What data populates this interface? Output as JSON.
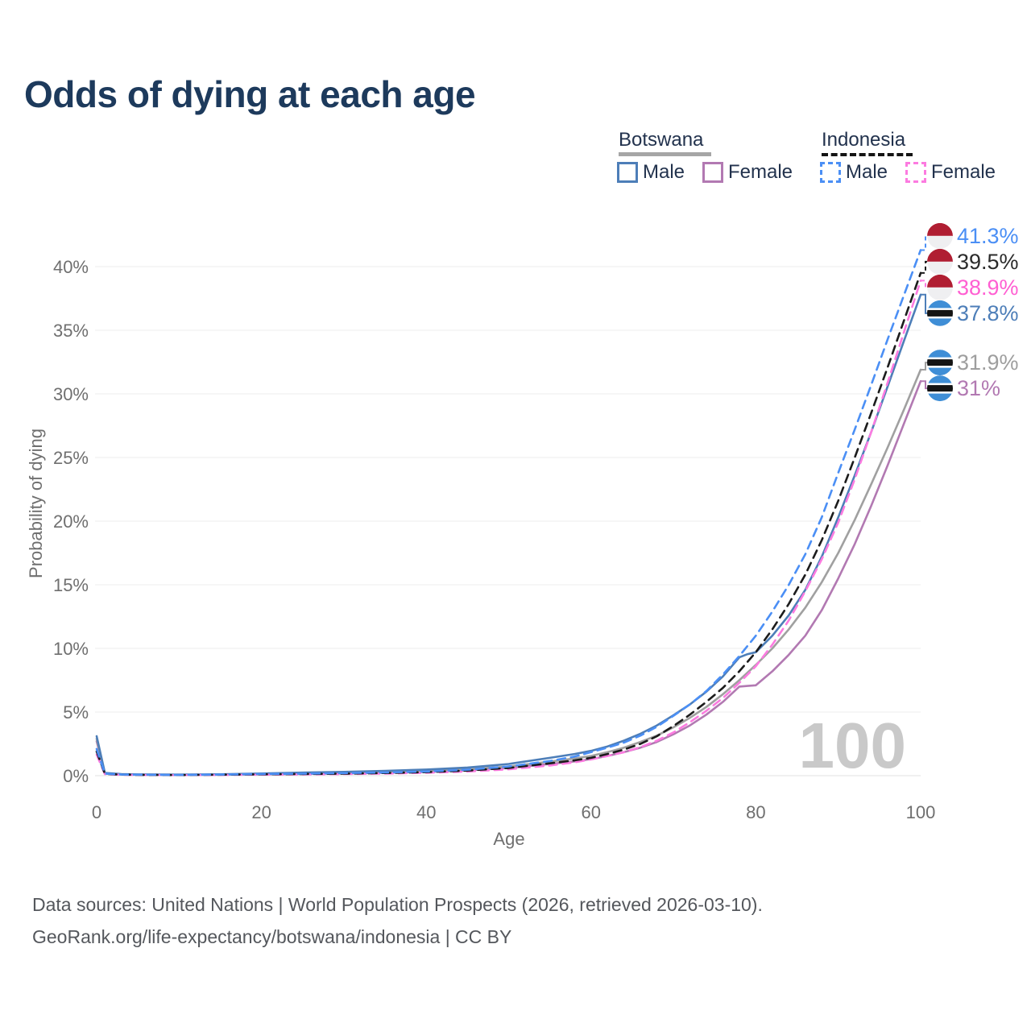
{
  "title": "Odds of dying at each age",
  "watermark": "100",
  "legend": {
    "groups": [
      {
        "name": "Botswana",
        "style": "solid-gray-underline",
        "items": [
          {
            "label": "Male"
          },
          {
            "label": "Female"
          }
        ]
      },
      {
        "name": "Indonesia",
        "style": "dashed-black-underline",
        "items": [
          {
            "label": "Male"
          },
          {
            "label": "Female"
          }
        ]
      }
    ]
  },
  "footer": {
    "line1": "Data sources: United Nations | World Population Prospects (2026, retrieved 2026-03-10).",
    "line2": "GeoRank.org/life-expectancy/botswana/indonesia | CC BY"
  },
  "flag_colors": {
    "indonesia_red": "#b01e32",
    "indonesia_white": "#efeff1",
    "botswana_blue": "#3f8ed6",
    "botswana_black": "#141414",
    "botswana_white": "#ffffff"
  },
  "chart_data": {
    "type": "line",
    "title": "Odds of dying at each age",
    "xlabel": "Age",
    "ylabel": "Probability of dying",
    "x_ticks": [
      0,
      20,
      40,
      60,
      80,
      100
    ],
    "y_ticks_pct": [
      0,
      5,
      10,
      15,
      20,
      25,
      30,
      35,
      40
    ],
    "xlim": [
      0,
      100
    ],
    "ylim_pct": [
      0,
      42
    ],
    "grid": "horizontal-only",
    "legend_position": "top-right",
    "series": [
      {
        "id": "botswana-female",
        "name": "Botswana female",
        "color": "#b279b2",
        "dashed": false,
        "end_label": "31%",
        "label_color": "#b279b2",
        "flag": "botswana",
        "points": [
          [
            0,
            2.7
          ],
          [
            1,
            0.17
          ],
          [
            3,
            0.09
          ],
          [
            5,
            0.075
          ],
          [
            10,
            0.055
          ],
          [
            15,
            0.075
          ],
          [
            20,
            0.105
          ],
          [
            25,
            0.14
          ],
          [
            30,
            0.18
          ],
          [
            35,
            0.23
          ],
          [
            40,
            0.3
          ],
          [
            45,
            0.41
          ],
          [
            50,
            0.6
          ],
          [
            55,
            0.92
          ],
          [
            58,
            1.12
          ],
          [
            60,
            1.3
          ],
          [
            62,
            1.55
          ],
          [
            64,
            1.85
          ],
          [
            66,
            2.2
          ],
          [
            68,
            2.65
          ],
          [
            70,
            3.25
          ],
          [
            72,
            3.95
          ],
          [
            74,
            4.8
          ],
          [
            76,
            5.8
          ],
          [
            78,
            7.0
          ],
          [
            79,
            7.05
          ],
          [
            80,
            7.1
          ],
          [
            82,
            8.2
          ],
          [
            84,
            9.5
          ],
          [
            86,
            11.0
          ],
          [
            88,
            13.0
          ],
          [
            90,
            15.5
          ],
          [
            92,
            18.2
          ],
          [
            94,
            21.2
          ],
          [
            96,
            24.4
          ],
          [
            98,
            27.7
          ],
          [
            100,
            31.0
          ]
        ]
      },
      {
        "id": "botswana-total",
        "name": "Botswana",
        "color": "#a0a0a0",
        "dashed": false,
        "end_label": "31.9%",
        "label_color": "#9e9e9e",
        "flag": "botswana",
        "points": [
          [
            0,
            2.9
          ],
          [
            1,
            0.19
          ],
          [
            3,
            0.1
          ],
          [
            5,
            0.085
          ],
          [
            10,
            0.065
          ],
          [
            15,
            0.09
          ],
          [
            20,
            0.13
          ],
          [
            25,
            0.18
          ],
          [
            30,
            0.23
          ],
          [
            35,
            0.29
          ],
          [
            40,
            0.37
          ],
          [
            45,
            0.5
          ],
          [
            50,
            0.72
          ],
          [
            55,
            1.1
          ],
          [
            58,
            1.35
          ],
          [
            60,
            1.55
          ],
          [
            62,
            1.85
          ],
          [
            64,
            2.2
          ],
          [
            66,
            2.65
          ],
          [
            68,
            3.15
          ],
          [
            70,
            3.8
          ],
          [
            72,
            4.55
          ],
          [
            74,
            5.4
          ],
          [
            76,
            6.4
          ],
          [
            78,
            7.5
          ],
          [
            80,
            8.7
          ],
          [
            82,
            10.0
          ],
          [
            84,
            11.5
          ],
          [
            86,
            13.2
          ],
          [
            88,
            15.2
          ],
          [
            90,
            17.5
          ],
          [
            92,
            20.1
          ],
          [
            94,
            22.9
          ],
          [
            96,
            25.8
          ],
          [
            98,
            28.8
          ],
          [
            100,
            31.9
          ]
        ]
      },
      {
        "id": "botswana-male",
        "name": "Botswana male",
        "color": "#4d7eb8",
        "dashed": false,
        "end_label": "37.8%",
        "label_color": "#4d7eb8",
        "flag": "botswana",
        "points": [
          [
            0,
            3.1
          ],
          [
            1,
            0.22
          ],
          [
            3,
            0.12
          ],
          [
            5,
            0.1
          ],
          [
            10,
            0.08
          ],
          [
            15,
            0.11
          ],
          [
            20,
            0.17
          ],
          [
            25,
            0.24
          ],
          [
            30,
            0.3
          ],
          [
            35,
            0.38
          ],
          [
            40,
            0.48
          ],
          [
            45,
            0.64
          ],
          [
            50,
            0.92
          ],
          [
            55,
            1.4
          ],
          [
            58,
            1.7
          ],
          [
            60,
            1.95
          ],
          [
            62,
            2.3
          ],
          [
            64,
            2.75
          ],
          [
            66,
            3.3
          ],
          [
            68,
            3.95
          ],
          [
            70,
            4.75
          ],
          [
            72,
            5.6
          ],
          [
            74,
            6.6
          ],
          [
            76,
            7.8
          ],
          [
            78,
            9.3
          ],
          [
            79,
            9.55
          ],
          [
            80,
            9.7
          ],
          [
            82,
            11.0
          ],
          [
            84,
            12.6
          ],
          [
            86,
            14.6
          ],
          [
            88,
            17.2
          ],
          [
            90,
            20.3
          ],
          [
            92,
            23.6
          ],
          [
            94,
            27.0
          ],
          [
            96,
            30.6
          ],
          [
            98,
            34.2
          ],
          [
            100,
            37.8
          ]
        ]
      },
      {
        "id": "indonesia-female",
        "name": "Indonesia female",
        "color": "#fc7be0",
        "dashed": true,
        "end_label": "38.9%",
        "label_color": "#ff5fd2",
        "flag": "indonesia",
        "points": [
          [
            0,
            1.65
          ],
          [
            1,
            0.12
          ],
          [
            3,
            0.07
          ],
          [
            5,
            0.055
          ],
          [
            10,
            0.045
          ],
          [
            15,
            0.06
          ],
          [
            20,
            0.08
          ],
          [
            25,
            0.1
          ],
          [
            30,
            0.125
          ],
          [
            35,
            0.165
          ],
          [
            40,
            0.225
          ],
          [
            45,
            0.325
          ],
          [
            50,
            0.5
          ],
          [
            55,
            0.8
          ],
          [
            58,
            1.05
          ],
          [
            60,
            1.28
          ],
          [
            62,
            1.55
          ],
          [
            64,
            1.85
          ],
          [
            66,
            2.25
          ],
          [
            68,
            2.75
          ],
          [
            70,
            3.4
          ],
          [
            72,
            4.2
          ],
          [
            74,
            5.1
          ],
          [
            76,
            6.1
          ],
          [
            78,
            7.3
          ],
          [
            80,
            8.6
          ],
          [
            82,
            10.3
          ],
          [
            84,
            12.2
          ],
          [
            86,
            14.5
          ],
          [
            88,
            17.0
          ],
          [
            90,
            19.9
          ],
          [
            92,
            23.3
          ],
          [
            94,
            27.0
          ],
          [
            96,
            30.9
          ],
          [
            98,
            34.9
          ],
          [
            100,
            38.9
          ]
        ]
      },
      {
        "id": "indonesia-total",
        "name": "Indonesia",
        "color": "#1c1c1c",
        "dashed": true,
        "end_label": "39.5%",
        "label_color": "#2b2b2b",
        "flag": "indonesia",
        "points": [
          [
            0,
            1.9
          ],
          [
            1,
            0.14
          ],
          [
            3,
            0.08
          ],
          [
            5,
            0.065
          ],
          [
            10,
            0.05
          ],
          [
            15,
            0.075
          ],
          [
            20,
            0.105
          ],
          [
            25,
            0.13
          ],
          [
            30,
            0.16
          ],
          [
            35,
            0.21
          ],
          [
            40,
            0.28
          ],
          [
            45,
            0.4
          ],
          [
            50,
            0.61
          ],
          [
            55,
            0.97
          ],
          [
            58,
            1.2
          ],
          [
            60,
            1.4
          ],
          [
            62,
            1.7
          ],
          [
            64,
            2.05
          ],
          [
            66,
            2.5
          ],
          [
            68,
            3.1
          ],
          [
            70,
            3.9
          ],
          [
            72,
            4.8
          ],
          [
            74,
            5.8
          ],
          [
            76,
            6.9
          ],
          [
            78,
            8.2
          ],
          [
            80,
            9.7
          ],
          [
            82,
            11.5
          ],
          [
            84,
            13.5
          ],
          [
            86,
            15.8
          ],
          [
            88,
            18.5
          ],
          [
            90,
            21.6
          ],
          [
            92,
            25.0
          ],
          [
            94,
            28.5
          ],
          [
            96,
            32.1
          ],
          [
            98,
            35.8
          ],
          [
            100,
            39.5
          ]
        ]
      },
      {
        "id": "indonesia-male",
        "name": "Indonesia male",
        "color": "#4b8ff5",
        "dashed": true,
        "end_label": "41.3%",
        "label_color": "#4b8ff5",
        "flag": "indonesia",
        "points": [
          [
            0,
            2.1
          ],
          [
            1,
            0.16
          ],
          [
            3,
            0.09
          ],
          [
            5,
            0.075
          ],
          [
            10,
            0.06
          ],
          [
            15,
            0.09
          ],
          [
            20,
            0.13
          ],
          [
            25,
            0.16
          ],
          [
            30,
            0.2
          ],
          [
            35,
            0.25
          ],
          [
            40,
            0.33
          ],
          [
            45,
            0.47
          ],
          [
            50,
            0.72
          ],
          [
            55,
            1.15
          ],
          [
            58,
            1.5
          ],
          [
            60,
            1.85
          ],
          [
            62,
            2.2
          ],
          [
            64,
            2.6
          ],
          [
            66,
            3.15
          ],
          [
            68,
            3.85
          ],
          [
            70,
            4.7
          ],
          [
            72,
            5.6
          ],
          [
            74,
            6.65
          ],
          [
            76,
            7.95
          ],
          [
            78,
            9.4
          ],
          [
            80,
            11.0
          ],
          [
            82,
            12.9
          ],
          [
            84,
            15.0
          ],
          [
            86,
            17.4
          ],
          [
            88,
            20.3
          ],
          [
            90,
            23.8
          ],
          [
            92,
            27.2
          ],
          [
            94,
            30.7
          ],
          [
            96,
            34.3
          ],
          [
            98,
            37.8
          ],
          [
            100,
            41.3
          ]
        ]
      }
    ]
  }
}
